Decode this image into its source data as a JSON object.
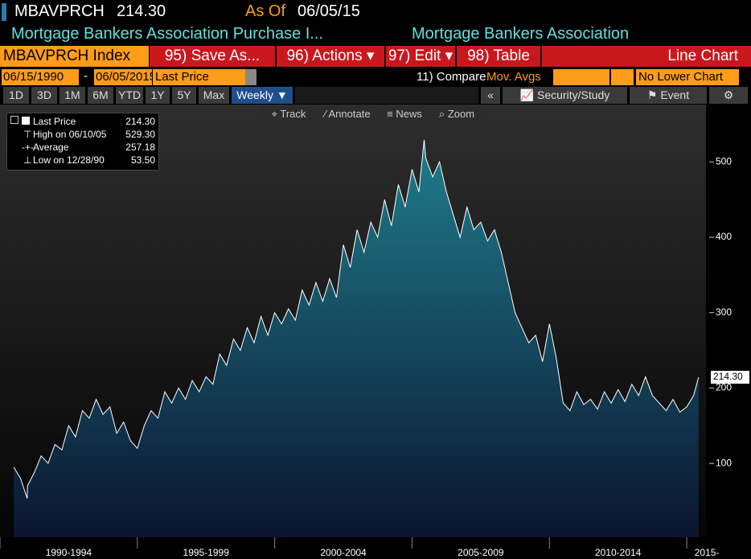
{
  "header": {
    "ticker": "MBAVPRCH",
    "price": "214.30",
    "as_of_label": "As Of",
    "as_of_date": "06/05/15",
    "name": "Mortgage Bankers Association Purchase I...",
    "source": "Mortgage Bankers Association"
  },
  "toolbar": {
    "security": "MBAVPRCH Index",
    "buttons": [
      "95) Save As...",
      "96) Actions",
      "97) Edit",
      "98) Table"
    ],
    "chart_kind": "Line Chart"
  },
  "range": {
    "start": "06/15/1990",
    "separator": "-",
    "end": "06/05/2015",
    "field": "Last Price",
    "compare": "11) Compare",
    "compare_value": "Mov. Avgs",
    "lower": "No Lower Chart"
  },
  "periods": {
    "items": [
      "1D",
      "3D",
      "1M",
      "6M",
      "YTD",
      "1Y",
      "5Y",
      "Max"
    ],
    "frequency": "Weekly",
    "collapse": "«",
    "security_study": "Security/Study",
    "event": "Event"
  },
  "tools": [
    "Track",
    "Annotate",
    "News",
    "Zoom"
  ],
  "legend": {
    "rows": [
      {
        "label": "Last Price",
        "value": "214.30"
      },
      {
        "label": "High on 06/10/05",
        "value": "529.30"
      },
      {
        "label": "Average",
        "value": "257.18"
      },
      {
        "label": "Low on 12/28/90",
        "value": "53.50"
      }
    ]
  },
  "chart_data": {
    "type": "area",
    "x": [
      1990.5,
      1990.75,
      1990.99,
      1991,
      1991.25,
      1991.5,
      1991.75,
      1992,
      1992.25,
      1992.5,
      1992.75,
      1993,
      1993.25,
      1993.5,
      1993.75,
      1994,
      1994.25,
      1994.5,
      1994.75,
      1995,
      1995.25,
      1995.5,
      1995.75,
      1996,
      1996.25,
      1996.5,
      1996.75,
      1997,
      1997.25,
      1997.5,
      1997.75,
      1998,
      1998.25,
      1998.5,
      1998.75,
      1999,
      1999.25,
      1999.5,
      1999.75,
      2000,
      2000.25,
      2000.5,
      2000.75,
      2001,
      2001.25,
      2001.5,
      2001.75,
      2002,
      2002.25,
      2002.5,
      2002.75,
      2003,
      2003.25,
      2003.5,
      2003.75,
      2004,
      2004.25,
      2004.5,
      2004.75,
      2005,
      2005.25,
      2005.44,
      2005.5,
      2005.75,
      2006,
      2006.25,
      2006.5,
      2006.75,
      2007,
      2007.25,
      2007.5,
      2007.75,
      2008,
      2008.25,
      2008.5,
      2008.75,
      2009,
      2009.25,
      2009.5,
      2009.75,
      2010,
      2010.25,
      2010.5,
      2010.75,
      2011,
      2011.25,
      2011.5,
      2011.75,
      2012,
      2012.25,
      2012.5,
      2012.75,
      2013,
      2013.25,
      2013.5,
      2013.75,
      2014,
      2014.25,
      2014.5,
      2014.75,
      2015,
      2015.25,
      2015.43
    ],
    "series": [
      {
        "color": "#ffffff",
        "fill_top": "#1f7d8c",
        "fill_bottom": "#0b1430",
        "values": [
          95,
          80,
          53.5,
          70,
          88,
          110,
          100,
          125,
          118,
          150,
          135,
          170,
          160,
          185,
          165,
          175,
          140,
          155,
          130,
          120,
          150,
          170,
          160,
          195,
          180,
          200,
          185,
          210,
          195,
          215,
          205,
          245,
          230,
          265,
          250,
          280,
          260,
          295,
          270,
          300,
          285,
          305,
          290,
          330,
          310,
          340,
          315,
          345,
          320,
          390,
          360,
          410,
          380,
          420,
          400,
          450,
          415,
          470,
          440,
          490,
          460,
          529.3,
          505,
          480,
          500,
          460,
          430,
          400,
          440,
          410,
          420,
          395,
          410,
          380,
          340,
          300,
          280,
          260,
          270,
          235,
          285,
          240,
          180,
          170,
          195,
          178,
          185,
          172,
          195,
          180,
          198,
          182,
          205,
          190,
          215,
          190,
          180,
          170,
          185,
          168,
          175,
          190,
          214.3
        ]
      }
    ],
    "xlim": [
      1990,
      2015.7
    ],
    "ylim": [
      2,
      576
    ],
    "xticks": [
      {
        "value": 1990,
        "label": "1990-1994"
      },
      {
        "value": 1995,
        "label": "1995-1999"
      },
      {
        "value": 2000,
        "label": "2000-2004"
      },
      {
        "value": 2005,
        "label": "2005-2009"
      },
      {
        "value": 2010,
        "label": "2010-2014"
      },
      {
        "value": 2015,
        "label": "2015-"
      }
    ],
    "yticks": [
      100,
      200,
      300,
      400,
      500
    ]
  }
}
